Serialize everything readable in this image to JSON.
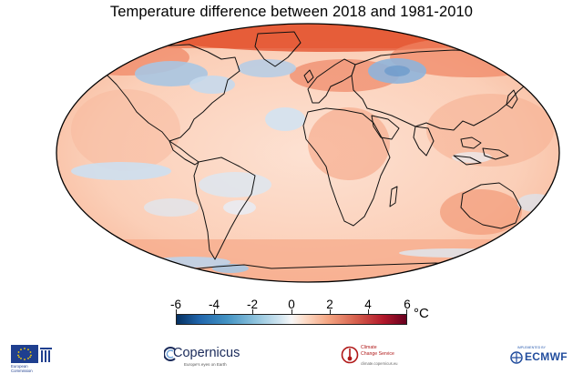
{
  "title": "Temperature difference between 2018 and 1981-2010",
  "map": {
    "projection": "Robinson",
    "variable": "surface air temperature anomaly",
    "colormap": "blue-white-red diverging",
    "colors": {
      "ocean_warm": "#fbd9c6",
      "land_warm": "#f7b596",
      "strong_warm": "#e8633e",
      "cool_light": "#dde8f3",
      "cool_medium": "#a9c6e2",
      "coastline": "#111111",
      "outline": "#000000"
    }
  },
  "colorbar": {
    "ticks": [
      "-6",
      "-4",
      "-2",
      "0",
      "2",
      "4",
      "6"
    ],
    "min": -6,
    "max": 6,
    "unit": "°C"
  },
  "logos": {
    "eu_text": "European\nCommission",
    "copernicus_name": "Copernicus",
    "copernicus_tagline": "Europe's eyes on Earth",
    "c3s_name": "Climate\nChange Service",
    "c3s_url": "climate.copernicus.eu",
    "ecmwf_tag": "IMPLEMENTED BY",
    "ecmwf_name": "ECMWF"
  }
}
